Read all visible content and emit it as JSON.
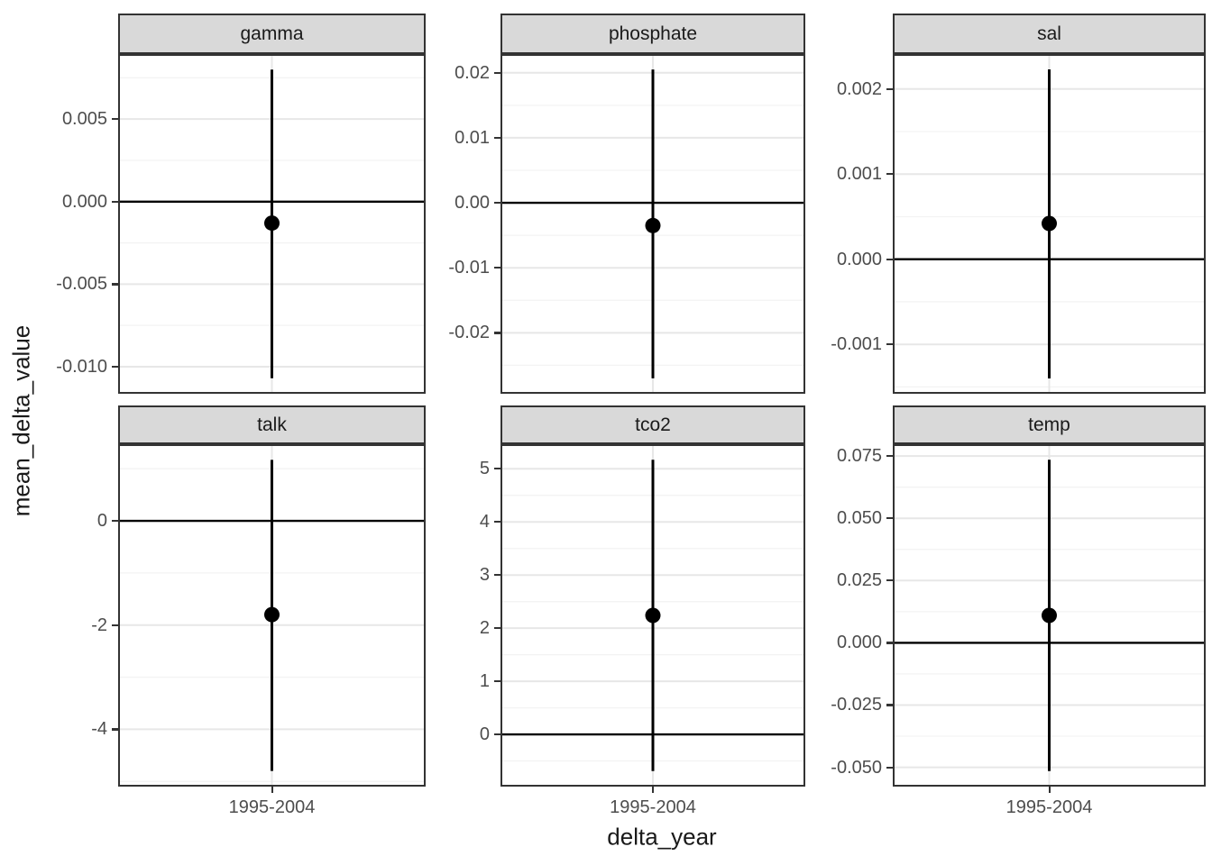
{
  "chart_data": {
    "type": "scatter",
    "subtype": "pointrange-facets",
    "title": "",
    "xlabel": "delta_year",
    "ylabel": "mean_delta_value",
    "x_categories": [
      "1995-2004"
    ],
    "grid": true,
    "legend": null,
    "hline_at": 0,
    "facets": [
      {
        "label": "gamma",
        "x": "1995-2004",
        "mean": -0.0013,
        "ymin": -0.0107,
        "ymax": 0.008,
        "axis_range": [
          -0.01164,
          0.00894
        ],
        "ticks": [
          {
            "v": 0.005,
            "label": "0.005"
          },
          {
            "v": 0.0,
            "label": "0.000"
          },
          {
            "v": -0.005,
            "label": "-0.005"
          },
          {
            "v": -0.01,
            "label": "-0.010"
          }
        ],
        "minor_ticks": [
          0.0075,
          0.0025,
          -0.0025,
          -0.0075
        ]
      },
      {
        "label": "phosphate",
        "x": "1995-2004",
        "mean": -0.0035,
        "ymin": -0.027,
        "ymax": 0.0205,
        "axis_range": [
          -0.02938,
          0.02288
        ],
        "ticks": [
          {
            "v": 0.02,
            "label": "0.02"
          },
          {
            "v": 0.01,
            "label": "0.01"
          },
          {
            "v": 0.0,
            "label": "0.00"
          },
          {
            "v": -0.01,
            "label": "-0.01"
          },
          {
            "v": -0.02,
            "label": "-0.02"
          }
        ],
        "minor_ticks": [
          0.015,
          0.005,
          -0.005,
          -0.015,
          -0.025
        ]
      },
      {
        "label": "sal",
        "x": "1995-2004",
        "mean": 0.00042,
        "ymin": -0.0014,
        "ymax": 0.00223,
        "axis_range": [
          -0.00158,
          0.00241
        ],
        "ticks": [
          {
            "v": 0.002,
            "label": "0.002"
          },
          {
            "v": 0.001,
            "label": "0.001"
          },
          {
            "v": 0.0,
            "label": "0.000"
          },
          {
            "v": -0.001,
            "label": "-0.001"
          }
        ],
        "minor_ticks": [
          0.0015,
          0.0005,
          -0.0005,
          -0.0015
        ]
      },
      {
        "label": "talk",
        "x": "1995-2004",
        "mean": -1.8,
        "ymin": -4.8,
        "ymax": 1.17,
        "axis_range": [
          -5.1,
          1.47
        ],
        "ticks": [
          {
            "v": 0,
            "label": "0"
          },
          {
            "v": -2,
            "label": "-2"
          },
          {
            "v": -4,
            "label": "-4"
          }
        ],
        "minor_ticks": [
          1,
          -1,
          -3,
          -5
        ]
      },
      {
        "label": "tco2",
        "x": "1995-2004",
        "mean": 2.24,
        "ymin": -0.69,
        "ymax": 5.17,
        "axis_range": [
          -0.983,
          5.463
        ],
        "ticks": [
          {
            "v": 5,
            "label": "5"
          },
          {
            "v": 4,
            "label": "4"
          },
          {
            "v": 3,
            "label": "3"
          },
          {
            "v": 2,
            "label": "2"
          },
          {
            "v": 1,
            "label": "1"
          },
          {
            "v": 0,
            "label": "0"
          }
        ],
        "minor_ticks": [
          4.5,
          3.5,
          2.5,
          1.5,
          0.5,
          -0.5
        ]
      },
      {
        "label": "temp",
        "x": "1995-2004",
        "mean": 0.011,
        "ymin": -0.0515,
        "ymax": 0.0735,
        "axis_range": [
          -0.05775,
          0.07975
        ],
        "ticks": [
          {
            "v": 0.075,
            "label": "0.075"
          },
          {
            "v": 0.05,
            "label": "0.050"
          },
          {
            "v": 0.025,
            "label": "0.025"
          },
          {
            "v": 0.0,
            "label": "0.000"
          },
          {
            "v": -0.025,
            "label": "-0.025"
          },
          {
            "v": -0.05,
            "label": "-0.050"
          }
        ],
        "minor_ticks": [
          0.0625,
          0.0375,
          0.0125,
          -0.0125,
          -0.0375
        ]
      }
    ],
    "colors": {
      "point": "#000000",
      "errorbar": "#000000",
      "zero_line": "#000000",
      "strip_bg": "#d9d9d9",
      "panel_border": "#333333",
      "grid_major": "#e7e7e7",
      "grid_minor": "#f3f3f3",
      "tick_mark": "#333333",
      "tick_label": "#4d4d4d",
      "strip_text": "#1a1a1a",
      "axis_title": "#1a1a1a",
      "panel_bg": "#ffffff"
    }
  }
}
